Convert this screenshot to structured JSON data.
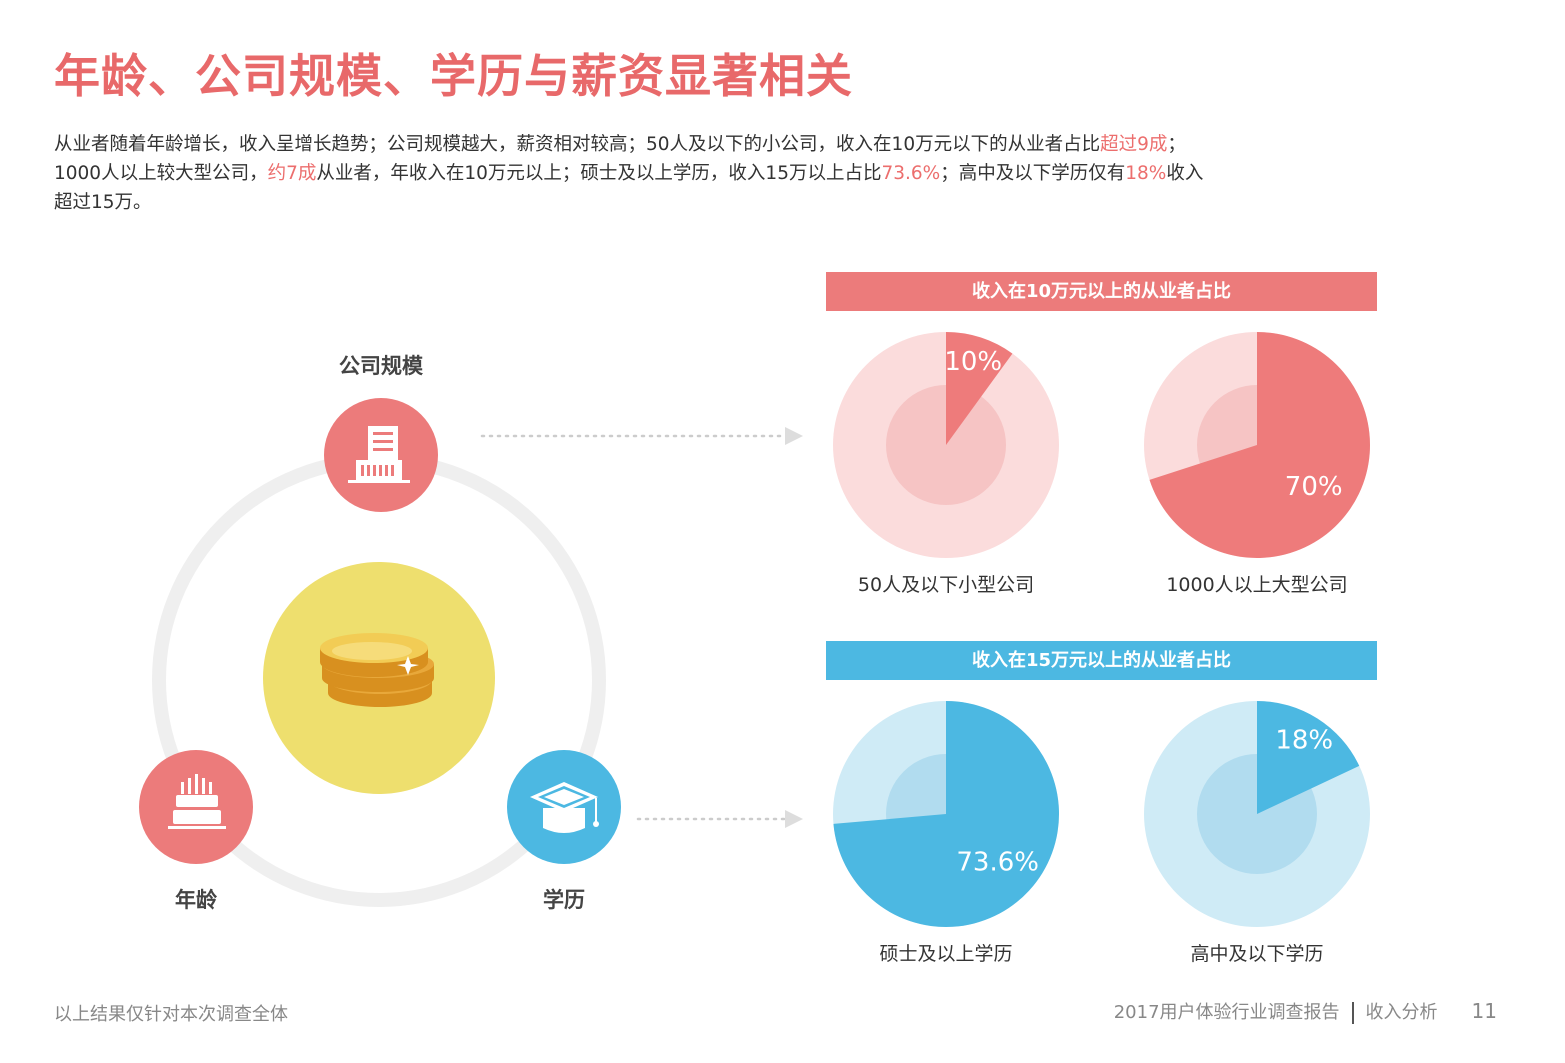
{
  "title": "年龄、公司规模、学历与薪资显著相关",
  "intro": {
    "line1_a": "从业者随着年龄增长，收入呈增长趋势；公司规模越大，薪资相对较高；50人及以下的小公司，收入在10万元以下的从业者占比",
    "line1_hl": "超过9成",
    "line1_b": "；",
    "line2_a": "1000人以上较大型公司，",
    "line2_hl1": "约7成",
    "line2_b": "从业者，年收入在10万元以上；硕士及以上学历，收入15万以上占比",
    "line2_hl2": "73.6%",
    "line2_c": "；高中及以下学历仅有",
    "line2_hl3": "18%",
    "line2_d": "收入",
    "line3": "超过15万。"
  },
  "factors": {
    "company": "公司规模",
    "age": "年龄",
    "education": "学历"
  },
  "icons": {
    "company": "building-icon",
    "age": "birthday-cake-icon",
    "education": "graduation-cap-icon",
    "center": "gold-coins-icon"
  },
  "chart_data": [
    {
      "type": "pie",
      "title": "收入在10万元以上的从业者占比",
      "header_color": "#ec7b7b",
      "pies": [
        {
          "label": "50人及以下小型公司",
          "value": 10,
          "value_label": "10%",
          "color": "#ee7b7b",
          "bg_color": "#fbdcdc",
          "inner_color": "#f6c4c4"
        },
        {
          "label": "1000人以上大型公司",
          "value": 70,
          "value_label": "70%",
          "color": "#ee7b7b",
          "bg_color": "#fbdcdc",
          "inner_color": "#f6c4c4"
        }
      ]
    },
    {
      "type": "pie",
      "title": "收入在15万元以上的从业者占比",
      "header_color": "#4cb8e2",
      "pies": [
        {
          "label": "硕士及以上学历",
          "value": 73.6,
          "value_label": "73.6%",
          "color": "#4cb8e2",
          "bg_color": "#cfebf6",
          "inner_color": "#b1dcef"
        },
        {
          "label": "高中及以下学历",
          "value": 18,
          "value_label": "18%",
          "color": "#4cb8e2",
          "bg_color": "#cfebf6",
          "inner_color": "#b1dcef"
        }
      ]
    }
  ],
  "footer": {
    "note": "以上结果仅针对本次调查全体",
    "report": "2017用户体验行业调查报告",
    "section": "收入分析",
    "page": "11"
  }
}
